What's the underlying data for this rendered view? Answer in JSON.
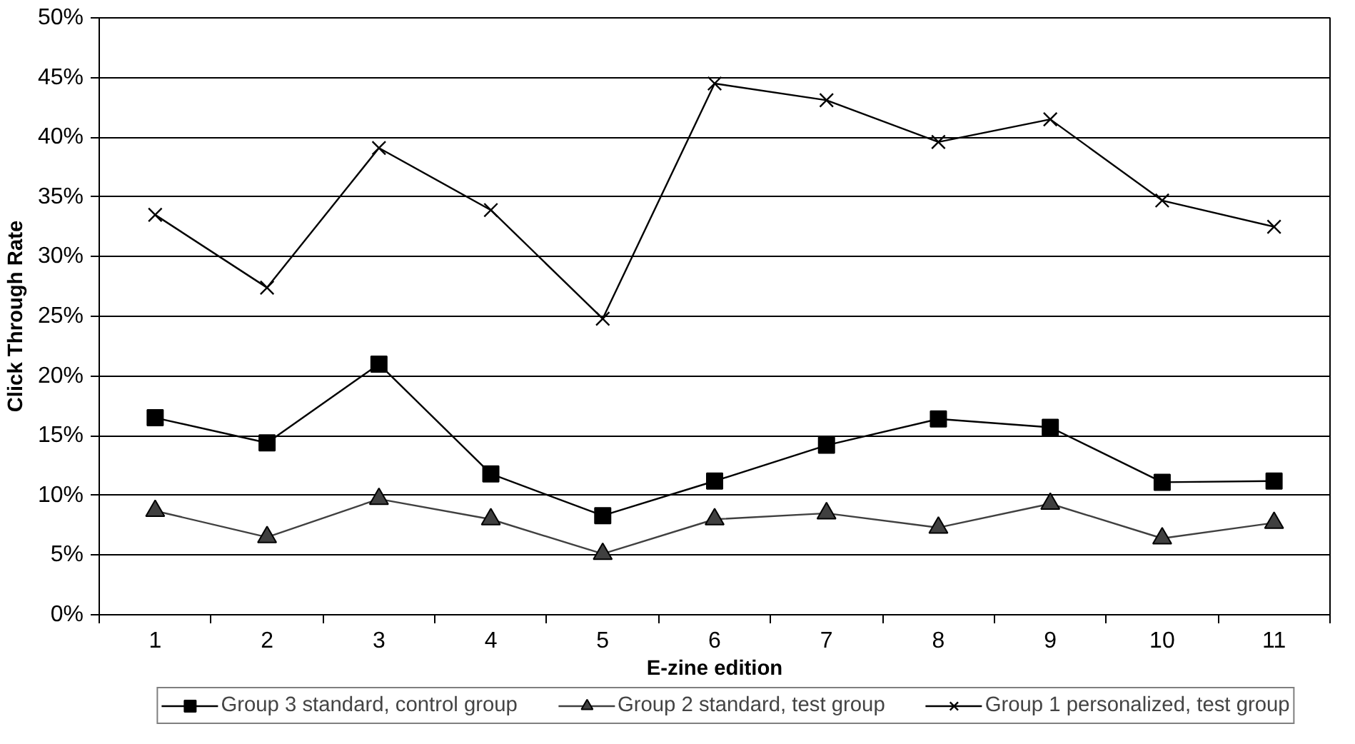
{
  "chart_data": {
    "type": "line",
    "xlabel": "E-zine edition",
    "ylabel": "Click Through Rate",
    "categories": [
      "1",
      "2",
      "3",
      "4",
      "5",
      "6",
      "7",
      "8",
      "9",
      "10",
      "11"
    ],
    "series": [
      {
        "name": "Group 3 standard, control group",
        "color": "#000000",
        "marker": "square",
        "values": [
          16.5,
          14.4,
          21.0,
          11.8,
          8.3,
          11.2,
          14.2,
          16.4,
          15.7,
          11.1,
          11.2
        ]
      },
      {
        "name": "Group 2 standard, test group",
        "color": "#404040",
        "marker": "triangle",
        "values": [
          8.7,
          6.5,
          9.7,
          8.0,
          5.1,
          8.0,
          8.5,
          7.3,
          9.3,
          6.4,
          7.7
        ]
      },
      {
        "name": "Group 1 personalized, test group",
        "color": "#000000",
        "marker": "cross",
        "values": [
          33.5,
          27.4,
          39.1,
          33.9,
          24.8,
          44.5,
          43.1,
          39.6,
          41.5,
          34.7,
          32.5
        ]
      }
    ],
    "ylim": [
      0,
      50
    ],
    "yticks": [
      {
        "value": 0,
        "label": "0%"
      },
      {
        "value": 5,
        "label": "5%"
      },
      {
        "value": 10,
        "label": "10%"
      },
      {
        "value": 15,
        "label": "15%"
      },
      {
        "value": 20,
        "label": "20%"
      },
      {
        "value": 25,
        "label": "25%"
      },
      {
        "value": 30,
        "label": "30%"
      },
      {
        "value": 35,
        "label": "35%"
      },
      {
        "value": 40,
        "label": "40%"
      },
      {
        "value": 45,
        "label": "45%"
      },
      {
        "value": 50,
        "label": "50%"
      }
    ],
    "grid": "y",
    "legend": "bottom",
    "line_style": "solid"
  }
}
